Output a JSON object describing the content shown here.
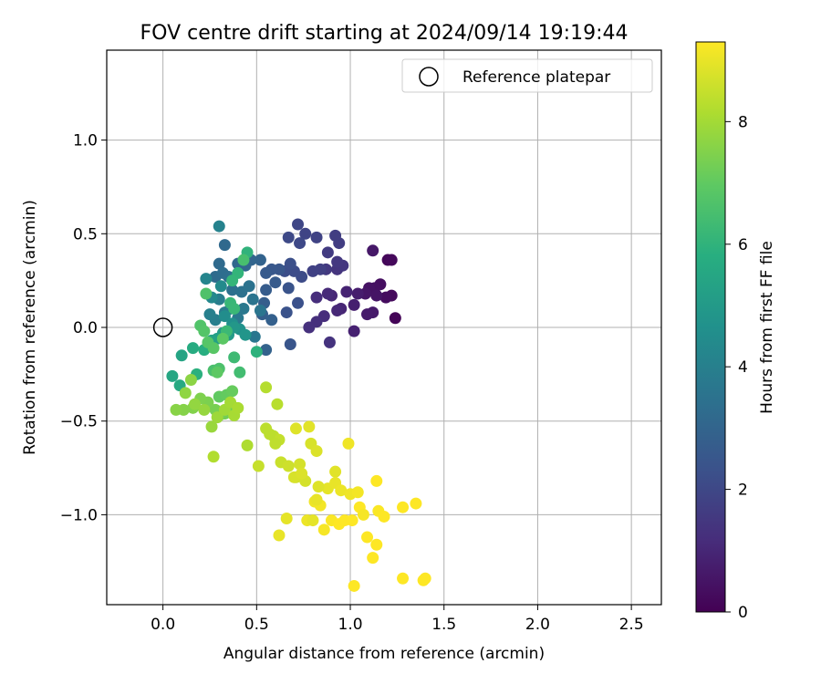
{
  "chart_data": {
    "type": "scatter",
    "title": "FOV centre drift starting at 2024/09/14 19:19:44",
    "xlabel": "Angular distance from reference (arcmin)",
    "ylabel": "Rotation from reference (arcmin)",
    "xlim": [
      -0.3,
      2.66
    ],
    "ylim": [
      -1.48,
      1.48
    ],
    "xticks": [
      0.0,
      0.5,
      1.0,
      1.5,
      2.0,
      2.5
    ],
    "xtick_labels": [
      "0.0",
      "0.5",
      "1.0",
      "1.5",
      "2.0",
      "2.5"
    ],
    "yticks": [
      -1.0,
      -0.5,
      0.0,
      0.5,
      1.0
    ],
    "ytick_labels": [
      "−1.0",
      "−0.5",
      "0.0",
      "0.5",
      "1.0"
    ],
    "grid": true,
    "legend": {
      "placement": "top-right",
      "entries": [
        {
          "label": "Reference platepar",
          "marker": "open-circle",
          "x": 0.0,
          "y": 0.0
        }
      ]
    },
    "colorbar": {
      "label": "Hours from first FF file",
      "colormap": "viridis",
      "range": [
        0,
        9.3
      ],
      "ticks": [
        0,
        2,
        4,
        6,
        8
      ],
      "tick_labels": [
        "0",
        "2",
        "4",
        "6",
        "8"
      ]
    },
    "points": [
      [
        1.24,
        0.05,
        0.1
      ],
      [
        1.2,
        0.36,
        0.15
      ],
      [
        1.22,
        0.36,
        0.2
      ],
      [
        1.22,
        0.17,
        0.25
      ],
      [
        1.19,
        0.16,
        0.3
      ],
      [
        1.16,
        0.23,
        0.35
      ],
      [
        1.13,
        0.21,
        0.4
      ],
      [
        1.1,
        0.21,
        0.45
      ],
      [
        1.14,
        0.17,
        0.5
      ],
      [
        1.08,
        0.18,
        0.55
      ],
      [
        1.12,
        0.41,
        0.6
      ],
      [
        1.12,
        0.08,
        0.65
      ],
      [
        1.09,
        0.07,
        0.7
      ],
      [
        1.04,
        0.18,
        0.75
      ],
      [
        1.02,
        0.12,
        0.8
      ],
      [
        1.02,
        -0.02,
        0.85
      ],
      [
        0.98,
        0.19,
        0.9
      ],
      [
        0.95,
        0.1,
        0.95
      ],
      [
        0.9,
        0.17,
        1.0
      ],
      [
        0.93,
        0.09,
        1.05
      ],
      [
        0.88,
        0.18,
        1.1
      ],
      [
        0.86,
        0.06,
        1.15
      ],
      [
        0.82,
        0.16,
        1.2
      ],
      [
        0.82,
        0.03,
        1.25
      ],
      [
        0.78,
        0.0,
        1.3
      ],
      [
        0.89,
        -0.08,
        1.35
      ],
      [
        0.93,
        0.31,
        1.4
      ],
      [
        0.96,
        0.33,
        1.45
      ],
      [
        0.93,
        0.35,
        1.5
      ],
      [
        0.87,
        0.31,
        1.55
      ],
      [
        0.88,
        0.4,
        1.6
      ],
      [
        0.94,
        0.45,
        1.65
      ],
      [
        0.92,
        0.49,
        1.7
      ],
      [
        0.84,
        0.31,
        1.75
      ],
      [
        0.8,
        0.3,
        1.8
      ],
      [
        0.82,
        0.48,
        1.85
      ],
      [
        0.76,
        0.5,
        1.9
      ],
      [
        0.72,
        0.55,
        1.95
      ],
      [
        0.73,
        0.45,
        2.0
      ],
      [
        0.67,
        0.48,
        2.05
      ],
      [
        0.74,
        0.27,
        2.1
      ],
      [
        0.7,
        0.3,
        2.15
      ],
      [
        0.65,
        0.3,
        2.2
      ],
      [
        0.68,
        0.34,
        2.25
      ],
      [
        0.72,
        0.13,
        2.3
      ],
      [
        0.66,
        0.08,
        2.35
      ],
      [
        0.67,
        0.21,
        2.4
      ],
      [
        0.68,
        -0.09,
        2.45
      ],
      [
        0.62,
        0.31,
        2.5
      ],
      [
        0.58,
        0.31,
        2.55
      ],
      [
        0.55,
        0.29,
        2.6
      ],
      [
        0.6,
        0.24,
        2.65
      ],
      [
        0.55,
        0.2,
        2.7
      ],
      [
        0.54,
        0.13,
        2.75
      ],
      [
        0.53,
        0.07,
        2.8
      ],
      [
        0.58,
        0.04,
        2.85
      ],
      [
        0.55,
        -0.12,
        2.9
      ],
      [
        0.52,
        0.36,
        2.95
      ],
      [
        0.47,
        0.36,
        3.0
      ],
      [
        0.44,
        0.33,
        3.05
      ],
      [
        0.4,
        0.34,
        3.1
      ],
      [
        0.33,
        0.44,
        3.15
      ],
      [
        0.3,
        0.34,
        3.2
      ],
      [
        0.28,
        0.27,
        3.25
      ],
      [
        0.32,
        0.29,
        3.3
      ],
      [
        0.35,
        0.27,
        3.35
      ],
      [
        0.37,
        0.2,
        3.4
      ],
      [
        0.42,
        0.19,
        3.45
      ],
      [
        0.46,
        0.22,
        3.5
      ],
      [
        0.48,
        0.15,
        3.55
      ],
      [
        0.52,
        0.09,
        3.6
      ],
      [
        0.49,
        -0.05,
        3.65
      ],
      [
        0.43,
        0.1,
        3.7
      ],
      [
        0.4,
        0.05,
        3.75
      ],
      [
        0.36,
        0.1,
        3.8
      ],
      [
        0.33,
        0.08,
        3.85
      ],
      [
        0.3,
        0.15,
        3.9
      ],
      [
        0.28,
        0.04,
        3.95
      ],
      [
        0.25,
        0.07,
        4.0
      ],
      [
        0.3,
        0.54,
        4.1
      ],
      [
        0.23,
        0.26,
        4.2
      ],
      [
        0.26,
        0.16,
        4.3
      ],
      [
        0.31,
        0.22,
        4.4
      ],
      [
        0.33,
        0.06,
        4.5
      ],
      [
        0.37,
        0.02,
        4.6
      ],
      [
        0.41,
        -0.01,
        4.7
      ],
      [
        0.44,
        -0.04,
        4.8
      ],
      [
        0.38,
        0.0,
        4.9
      ],
      [
        0.35,
        -0.04,
        5.0
      ],
      [
        0.32,
        -0.03,
        5.1
      ],
      [
        0.29,
        -0.06,
        5.2
      ],
      [
        0.26,
        -0.07,
        5.3
      ],
      [
        0.1,
        -0.15,
        5.4
      ],
      [
        0.05,
        -0.26,
        5.5
      ],
      [
        0.09,
        -0.31,
        5.6
      ],
      [
        0.16,
        -0.11,
        5.7
      ],
      [
        0.22,
        -0.12,
        5.8
      ],
      [
        0.18,
        -0.25,
        5.9
      ],
      [
        0.5,
        -0.13,
        5.95
      ],
      [
        0.45,
        0.4,
        6.0
      ],
      [
        0.4,
        0.29,
        6.05
      ],
      [
        0.37,
        0.25,
        6.1
      ],
      [
        0.36,
        0.13,
        6.15
      ],
      [
        0.38,
        0.1,
        6.2
      ],
      [
        0.34,
        -0.02,
        6.25
      ],
      [
        0.38,
        -0.16,
        6.3
      ],
      [
        0.41,
        -0.24,
        6.4
      ],
      [
        0.43,
        0.36,
        6.5
      ],
      [
        0.27,
        -0.23,
        6.55
      ],
      [
        0.3,
        -0.22,
        6.6
      ],
      [
        0.23,
        0.18,
        6.65
      ],
      [
        0.2,
        0.01,
        6.7
      ],
      [
        0.22,
        -0.02,
        6.75
      ],
      [
        0.24,
        -0.08,
        6.8
      ],
      [
        0.27,
        -0.11,
        6.85
      ],
      [
        0.32,
        -0.06,
        6.9
      ],
      [
        0.29,
        -0.24,
        6.95
      ],
      [
        0.3,
        -0.37,
        7.0
      ],
      [
        0.34,
        -0.36,
        7.05
      ],
      [
        0.37,
        -0.34,
        7.1
      ],
      [
        0.39,
        -0.43,
        7.15
      ],
      [
        0.36,
        -0.43,
        7.2
      ],
      [
        0.33,
        -0.46,
        7.25
      ],
      [
        0.3,
        -0.47,
        7.3
      ],
      [
        0.28,
        -0.44,
        7.35
      ],
      [
        0.24,
        -0.4,
        7.4
      ],
      [
        0.2,
        -0.38,
        7.45
      ],
      [
        0.16,
        -0.43,
        7.5
      ],
      [
        0.11,
        -0.44,
        7.55
      ],
      [
        0.07,
        -0.44,
        7.6
      ],
      [
        0.15,
        -0.28,
        7.65
      ],
      [
        0.12,
        -0.35,
        7.7
      ],
      [
        0.17,
        -0.41,
        7.75
      ],
      [
        0.22,
        -0.44,
        7.8
      ],
      [
        0.26,
        -0.53,
        7.85
      ],
      [
        0.29,
        -0.48,
        7.9
      ],
      [
        0.33,
        -0.44,
        7.95
      ],
      [
        0.36,
        -0.4,
        8.0
      ],
      [
        0.38,
        -0.47,
        8.05
      ],
      [
        0.4,
        -0.43,
        8.1
      ],
      [
        0.45,
        -0.63,
        8.15
      ],
      [
        0.27,
        -0.69,
        8.2
      ],
      [
        0.55,
        -0.32,
        8.25
      ],
      [
        0.61,
        -0.41,
        8.3
      ],
      [
        0.55,
        -0.54,
        8.35
      ],
      [
        0.59,
        -0.58,
        8.4
      ],
      [
        0.62,
        -0.6,
        8.45
      ],
      [
        0.51,
        -0.74,
        8.5
      ],
      [
        0.63,
        -0.72,
        8.55
      ],
      [
        0.67,
        -0.74,
        8.6
      ],
      [
        0.71,
        -0.8,
        8.65
      ],
      [
        0.76,
        -0.82,
        8.7
      ],
      [
        0.79,
        -0.62,
        8.75
      ],
      [
        0.82,
        -0.66,
        8.8
      ],
      [
        0.71,
        -0.54,
        8.85
      ],
      [
        0.78,
        -0.53,
        8.9
      ],
      [
        0.66,
        -1.02,
        8.95
      ],
      [
        0.62,
        -1.11,
        9.0
      ],
      [
        0.77,
        -1.03,
        9.05
      ],
      [
        0.81,
        -0.93,
        9.1
      ],
      [
        0.84,
        -0.95,
        9.15
      ],
      [
        0.86,
        -1.08,
        9.2
      ],
      [
        0.9,
        -1.03,
        9.25
      ],
      [
        0.94,
        -1.05,
        9.3
      ],
      [
        0.97,
        -1.03,
        9.3
      ],
      [
        1.01,
        -1.03,
        9.3
      ],
      [
        1.05,
        -0.96,
        9.3
      ],
      [
        1.09,
        -1.12,
        9.3
      ],
      [
        1.12,
        -1.23,
        9.3
      ],
      [
        1.14,
        -1.16,
        9.3
      ],
      [
        1.02,
        -1.38,
        9.3
      ],
      [
        1.28,
        -1.34,
        9.3
      ],
      [
        1.4,
        -1.34,
        9.3
      ],
      [
        1.39,
        -1.35,
        9.3
      ],
      [
        1.28,
        -0.96,
        9.3
      ],
      [
        1.35,
        -0.94,
        9.3
      ],
      [
        1.14,
        -0.82,
        9.3
      ],
      [
        0.99,
        -0.62,
        9.1
      ],
      [
        0.92,
        -0.77,
        8.9
      ],
      [
        0.88,
        -0.86,
        8.95
      ],
      [
        0.92,
        -0.83,
        9.0
      ],
      [
        0.95,
        -0.87,
        9.05
      ],
      [
        1.0,
        -0.89,
        9.1
      ],
      [
        1.04,
        -0.88,
        9.15
      ],
      [
        1.07,
        -1.0,
        9.2
      ],
      [
        1.15,
        -0.98,
        9.25
      ],
      [
        1.18,
        -1.01,
        9.3
      ],
      [
        0.83,
        -0.85,
        8.85
      ],
      [
        0.8,
        -1.03,
        8.95
      ],
      [
        0.73,
        -0.73,
        8.7
      ],
      [
        0.7,
        -0.8,
        8.75
      ],
      [
        0.74,
        -0.78,
        8.8
      ],
      [
        0.6,
        -0.62,
        8.4
      ],
      [
        0.57,
        -0.57,
        8.35
      ],
      [
        0.82,
        -0.92,
        9.0
      ]
    ]
  }
}
